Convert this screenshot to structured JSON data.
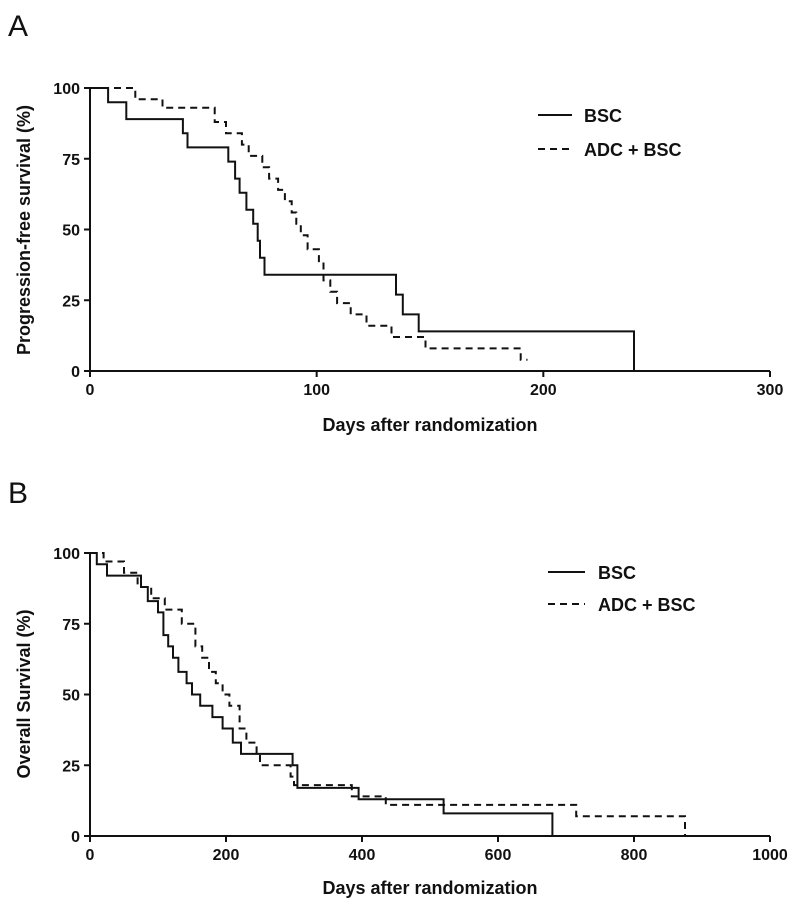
{
  "chart_data": [
    {
      "type": "line",
      "panel_label": "A",
      "title": "",
      "xlabel": "Days after randomization",
      "ylabel": "Progression-free survival (%)",
      "xlim": [
        0,
        300
      ],
      "ylim": [
        0,
        100
      ],
      "x_ticks": [
        "0",
        "100",
        "200",
        "300"
      ],
      "y_ticks": [
        "0",
        "25",
        "50",
        "75",
        "100"
      ],
      "grid": false,
      "legend_position": "top-right",
      "series": [
        {
          "name": "BSC",
          "line_style": "solid",
          "color": "#111111",
          "points": [
            [
              0,
              100
            ],
            [
              8,
              100
            ],
            [
              8,
              95
            ],
            [
              16,
              95
            ],
            [
              16,
              89
            ],
            [
              41,
              89
            ],
            [
              41,
              84
            ],
            [
              43,
              84
            ],
            [
              43,
              79
            ],
            [
              61,
              79
            ],
            [
              61,
              74
            ],
            [
              64,
              74
            ],
            [
              64,
              68
            ],
            [
              66,
              68
            ],
            [
              66,
              63
            ],
            [
              69,
              63
            ],
            [
              69,
              57
            ],
            [
              72,
              57
            ],
            [
              72,
              52
            ],
            [
              74,
              52
            ],
            [
              74,
              46
            ],
            [
              75,
              46
            ],
            [
              75,
              40
            ],
            [
              77,
              40
            ],
            [
              77,
              34
            ],
            [
              135,
              34
            ],
            [
              135,
              27
            ],
            [
              138,
              27
            ],
            [
              138,
              20
            ],
            [
              145,
              20
            ],
            [
              145,
              14
            ],
            [
              240,
              14
            ],
            [
              240,
              0
            ]
          ]
        },
        {
          "name": "ADC + BSC",
          "line_style": "dashed",
          "color": "#111111",
          "points": [
            [
              0,
              100
            ],
            [
              20,
              100
            ],
            [
              20,
              96
            ],
            [
              32,
              96
            ],
            [
              32,
              93
            ],
            [
              55,
              93
            ],
            [
              55,
              88
            ],
            [
              60,
              88
            ],
            [
              60,
              84
            ],
            [
              67,
              84
            ],
            [
              67,
              80
            ],
            [
              70,
              80
            ],
            [
              70,
              76
            ],
            [
              76,
              76
            ],
            [
              76,
              72
            ],
            [
              79,
              72
            ],
            [
              79,
              68
            ],
            [
              83,
              68
            ],
            [
              83,
              64
            ],
            [
              86,
              64
            ],
            [
              86,
              60
            ],
            [
              89,
              60
            ],
            [
              89,
              56
            ],
            [
              91,
              56
            ],
            [
              91,
              52
            ],
            [
              93,
              52
            ],
            [
              93,
              48
            ],
            [
              96,
              48
            ],
            [
              96,
              43
            ],
            [
              101,
              43
            ],
            [
              101,
              38
            ],
            [
              103,
              38
            ],
            [
              103,
              32
            ],
            [
              106,
              32
            ],
            [
              106,
              28
            ],
            [
              109,
              28
            ],
            [
              109,
              24
            ],
            [
              115,
              24
            ],
            [
              115,
              20
            ],
            [
              122,
              20
            ],
            [
              122,
              16
            ],
            [
              133,
              16
            ],
            [
              133,
              12
            ],
            [
              148,
              12
            ],
            [
              148,
              8
            ],
            [
              190,
              8
            ],
            [
              190,
              4
            ],
            [
              193,
              4
            ]
          ]
        }
      ]
    },
    {
      "type": "line",
      "panel_label": "B",
      "title": "",
      "xlabel": "Days after randomization",
      "ylabel": "Overall Survival (%)",
      "xlim": [
        0,
        1000
      ],
      "ylim": [
        0,
        100
      ],
      "x_ticks": [
        "0",
        "200",
        "400",
        "600",
        "800",
        "1000"
      ],
      "y_ticks": [
        "0",
        "25",
        "50",
        "75",
        "100"
      ],
      "grid": false,
      "legend_position": "top-right",
      "series": [
        {
          "name": "BSC",
          "line_style": "solid",
          "color": "#111111",
          "points": [
            [
              0,
              100
            ],
            [
              10,
              100
            ],
            [
              10,
              96
            ],
            [
              25,
              96
            ],
            [
              25,
              92
            ],
            [
              75,
              92
            ],
            [
              75,
              88
            ],
            [
              85,
              88
            ],
            [
              85,
              83
            ],
            [
              100,
              83
            ],
            [
              100,
              79
            ],
            [
              108,
              79
            ],
            [
              108,
              71
            ],
            [
              115,
              71
            ],
            [
              115,
              67
            ],
            [
              122,
              67
            ],
            [
              122,
              63
            ],
            [
              130,
              63
            ],
            [
              130,
              58
            ],
            [
              142,
              58
            ],
            [
              142,
              54
            ],
            [
              150,
              54
            ],
            [
              150,
              50
            ],
            [
              162,
              50
            ],
            [
              162,
              46
            ],
            [
              180,
              46
            ],
            [
              180,
              42
            ],
            [
              195,
              42
            ],
            [
              195,
              38
            ],
            [
              210,
              38
            ],
            [
              210,
              33
            ],
            [
              222,
              33
            ],
            [
              222,
              29
            ],
            [
              298,
              29
            ],
            [
              298,
              25
            ],
            [
              305,
              25
            ],
            [
              305,
              17
            ],
            [
              395,
              17
            ],
            [
              395,
              13
            ],
            [
              520,
              13
            ],
            [
              520,
              8
            ],
            [
              680,
              8
            ],
            [
              680,
              0
            ]
          ]
        },
        {
          "name": "ADC + BSC",
          "line_style": "dashed",
          "color": "#111111",
          "points": [
            [
              0,
              100
            ],
            [
              20,
              100
            ],
            [
              20,
              97
            ],
            [
              50,
              97
            ],
            [
              50,
              93
            ],
            [
              70,
              93
            ],
            [
              70,
              88
            ],
            [
              90,
              88
            ],
            [
              90,
              84
            ],
            [
              110,
              84
            ],
            [
              110,
              80
            ],
            [
              135,
              80
            ],
            [
              135,
              75
            ],
            [
              155,
              75
            ],
            [
              155,
              67
            ],
            [
              165,
              67
            ],
            [
              165,
              63
            ],
            [
              175,
              63
            ],
            [
              175,
              58
            ],
            [
              185,
              58
            ],
            [
              185,
              54
            ],
            [
              195,
              54
            ],
            [
              195,
              50
            ],
            [
              205,
              50
            ],
            [
              205,
              46
            ],
            [
              220,
              46
            ],
            [
              220,
              38
            ],
            [
              230,
              38
            ],
            [
              230,
              33
            ],
            [
              245,
              33
            ],
            [
              245,
              29
            ],
            [
              250,
              29
            ],
            [
              250,
              25
            ],
            [
              295,
              25
            ],
            [
              295,
              21
            ],
            [
              300,
              21
            ],
            [
              300,
              18
            ],
            [
              385,
              18
            ],
            [
              385,
              14
            ],
            [
              435,
              14
            ],
            [
              435,
              11
            ],
            [
              520,
              11
            ],
            [
              520,
              11
            ],
            [
              715,
              11
            ],
            [
              715,
              7
            ],
            [
              875,
              7
            ],
            [
              875,
              0
            ]
          ]
        }
      ]
    }
  ]
}
